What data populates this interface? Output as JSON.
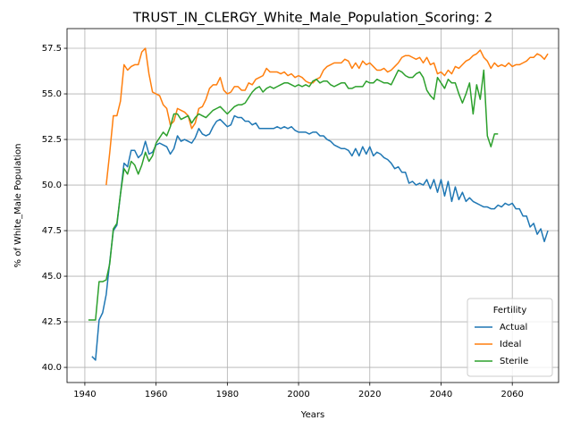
{
  "chart_data": {
    "type": "line",
    "title": "TRUST_IN_CLERGY_White_Male_Population_Scoring: 2",
    "xlabel": "Years",
    "ylabel": "% of White_Male Population",
    "x": [
      1941,
      1942,
      1943,
      1944,
      1945,
      1946,
      1947,
      1948,
      1949,
      1950,
      1951,
      1952,
      1953,
      1954,
      1955,
      1956,
      1957,
      1958,
      1959,
      1960,
      1961,
      1962,
      1963,
      1964,
      1965,
      1966,
      1967,
      1968,
      1969,
      1970,
      1971,
      1972,
      1973,
      1974,
      1975,
      1976,
      1977,
      1978,
      1979,
      1980,
      1981,
      1982,
      1983,
      1984,
      1985,
      1986,
      1987,
      1988,
      1989,
      1990,
      1991,
      1992,
      1993,
      1994,
      1995,
      1996,
      1997,
      1998,
      1999,
      2000,
      2001,
      2002,
      2003,
      2004,
      2005,
      2006,
      2007,
      2008,
      2009,
      2010,
      2011,
      2012,
      2013,
      2014,
      2015,
      2016,
      2017,
      2018,
      2019,
      2020,
      2021,
      2022,
      2023,
      2024,
      2025,
      2026,
      2027,
      2028,
      2029,
      2030,
      2031,
      2032,
      2033,
      2034,
      2035,
      2036,
      2037,
      2038,
      2039,
      2040,
      2041,
      2042,
      2043,
      2044,
      2045,
      2046,
      2047,
      2048,
      2049,
      2050,
      2051,
      2052,
      2053,
      2054,
      2055,
      2056,
      2057,
      2058,
      2059,
      2060,
      2061,
      2062,
      2063,
      2064,
      2065,
      2066,
      2067,
      2068,
      2069,
      2070
    ],
    "series": [
      {
        "name": "Actual",
        "color": "#1f77b4",
        "values": [
          null,
          40.6,
          40.4,
          42.6,
          43.0,
          44.0,
          45.8,
          47.5,
          47.8,
          49.5,
          51.2,
          51.0,
          51.9,
          51.9,
          51.5,
          51.7,
          52.4,
          51.7,
          51.8,
          52.2,
          52.3,
          52.2,
          52.1,
          51.7,
          52.0,
          52.7,
          52.4,
          52.5,
          52.4,
          52.3,
          52.6,
          53.1,
          52.8,
          52.7,
          52.8,
          53.2,
          53.5,
          53.6,
          53.4,
          53.2,
          53.3,
          53.8,
          53.7,
          53.7,
          53.5,
          53.5,
          53.3,
          53.4,
          53.1,
          53.1,
          53.1,
          53.1,
          53.1,
          53.2,
          53.1,
          53.2,
          53.1,
          53.2,
          53.0,
          52.9,
          52.9,
          52.9,
          52.8,
          52.9,
          52.9,
          52.7,
          52.7,
          52.5,
          52.4,
          52.2,
          52.1,
          52.0,
          52.0,
          51.9,
          51.6,
          52.0,
          51.6,
          52.1,
          51.7,
          52.1,
          51.6,
          51.8,
          51.7,
          51.5,
          51.4,
          51.2,
          50.9,
          51.0,
          50.7,
          50.7,
          50.1,
          50.2,
          50.0,
          50.1,
          50.0,
          50.3,
          49.8,
          50.3,
          49.6,
          50.3,
          49.4,
          50.2,
          49.1,
          49.9,
          49.2,
          49.6,
          49.1,
          49.3,
          49.1,
          49.0,
          48.9,
          48.8,
          48.8,
          48.7,
          48.7,
          48.9,
          48.8,
          49.0,
          48.9,
          49.0,
          48.7,
          48.7,
          48.3,
          48.3,
          47.7,
          47.9,
          47.3,
          47.6,
          46.9,
          47.5
        ]
      },
      {
        "name": "Ideal",
        "color": "#ff7f0e",
        "values": [
          null,
          null,
          null,
          null,
          null,
          50.0,
          51.8,
          53.8,
          53.8,
          54.6,
          56.6,
          56.3,
          56.5,
          56.6,
          56.6,
          57.3,
          57.5,
          56.1,
          55.1,
          55.0,
          54.9,
          54.4,
          54.2,
          53.3,
          53.5,
          54.2,
          54.1,
          54.0,
          53.8,
          53.1,
          53.4,
          54.2,
          54.3,
          54.7,
          55.3,
          55.5,
          55.5,
          55.9,
          55.2,
          55.0,
          55.1,
          55.4,
          55.4,
          55.2,
          55.2,
          55.6,
          55.5,
          55.8,
          55.9,
          56.0,
          56.4,
          56.2,
          56.2,
          56.2,
          56.1,
          56.2,
          56.0,
          56.1,
          55.9,
          56.0,
          55.9,
          55.7,
          55.6,
          55.6,
          55.8,
          55.9,
          56.3,
          56.5,
          56.6,
          56.7,
          56.7,
          56.7,
          56.9,
          56.8,
          56.4,
          56.7,
          56.4,
          56.8,
          56.6,
          56.7,
          56.5,
          56.3,
          56.3,
          56.4,
          56.2,
          56.3,
          56.5,
          56.7,
          57.0,
          57.1,
          57.1,
          57.0,
          56.9,
          57.0,
          56.7,
          57.0,
          56.6,
          56.7,
          56.1,
          56.2,
          56.0,
          56.3,
          56.1,
          56.5,
          56.4,
          56.6,
          56.8,
          56.9,
          57.1,
          57.2,
          57.4,
          57.0,
          56.8,
          56.4,
          56.7,
          56.5,
          56.6,
          56.5,
          56.7,
          56.5,
          56.6,
          56.6,
          56.7,
          56.8,
          57.0,
          57.0,
          57.2,
          57.1,
          56.9,
          57.2
        ]
      },
      {
        "name": "Sterile",
        "color": "#2ca02c",
        "values": [
          42.6,
          42.6,
          42.6,
          44.7,
          44.7,
          44.8,
          45.7,
          47.6,
          47.9,
          49.5,
          50.9,
          50.6,
          51.3,
          51.1,
          50.6,
          51.1,
          51.8,
          51.3,
          51.6,
          52.3,
          52.6,
          52.9,
          52.7,
          53.2,
          53.9,
          53.9,
          53.6,
          53.7,
          53.8,
          53.4,
          53.7,
          53.9,
          53.8,
          53.7,
          53.9,
          54.1,
          54.2,
          54.3,
          54.1,
          53.9,
          54.1,
          54.3,
          54.4,
          54.4,
          54.5,
          54.8,
          55.1,
          55.3,
          55.4,
          55.1,
          55.3,
          55.4,
          55.3,
          55.4,
          55.5,
          55.6,
          55.6,
          55.5,
          55.4,
          55.5,
          55.4,
          55.5,
          55.4,
          55.7,
          55.8,
          55.6,
          55.7,
          55.7,
          55.5,
          55.4,
          55.5,
          55.6,
          55.6,
          55.3,
          55.3,
          55.4,
          55.4,
          55.4,
          55.7,
          55.6,
          55.6,
          55.8,
          55.7,
          55.6,
          55.6,
          55.5,
          55.9,
          56.3,
          56.2,
          56.0,
          55.9,
          55.9,
          56.1,
          56.2,
          55.9,
          55.2,
          54.9,
          54.7,
          55.9,
          55.6,
          55.3,
          55.8,
          55.6,
          55.6,
          55.0,
          54.5,
          55.0,
          55.6,
          53.9,
          55.5,
          54.7,
          56.3,
          52.7,
          52.1,
          52.8,
          52.8,
          null,
          null,
          null,
          null,
          null,
          null,
          null,
          null,
          null,
          null,
          null,
          null,
          null,
          null
        ]
      }
    ],
    "xlim": [
      1935,
      2073
    ],
    "ylim": [
      39.17,
      58.58
    ],
    "xticks": [
      1940,
      1960,
      1980,
      2000,
      2020,
      2040,
      2060
    ],
    "yticks": [
      {
        "value": 40,
        "label": "40.0"
      },
      42.5,
      {
        "value": 45,
        "label": "45.0"
      },
      47.5,
      {
        "value": 50,
        "label": "50.0"
      },
      52.5,
      {
        "value": 55,
        "label": "55.0"
      },
      57.5
    ],
    "grid": true,
    "legend_title": "Fertility",
    "legend_loc": "lower right"
  }
}
